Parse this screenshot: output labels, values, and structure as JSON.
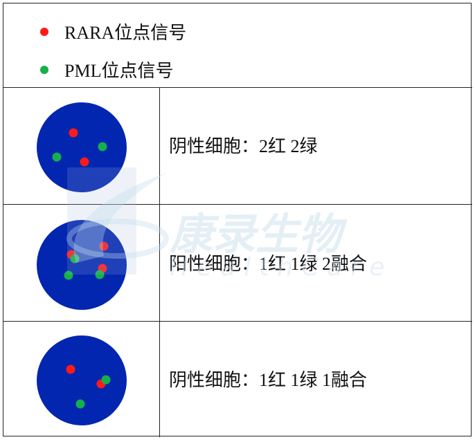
{
  "legend": [
    {
      "label": "RARA位点信号",
      "color": "#ff1a1a"
    },
    {
      "label": "PML位点信号",
      "color": "#16b04a"
    }
  ],
  "colors": {
    "nucleus": "#0326b0",
    "red_signal": "#ff1a1a",
    "green_signal": "#16b04a"
  },
  "rows": [
    {
      "label": "阴性细胞：2红 2绿"
    },
    {
      "label": "阳性细胞：1红 1绿 2融合"
    },
    {
      "label": "阴性细胞：1红 1绿 1融合"
    }
  ],
  "watermark": {
    "text": "康录生物",
    "subtext": "HealthCare"
  }
}
